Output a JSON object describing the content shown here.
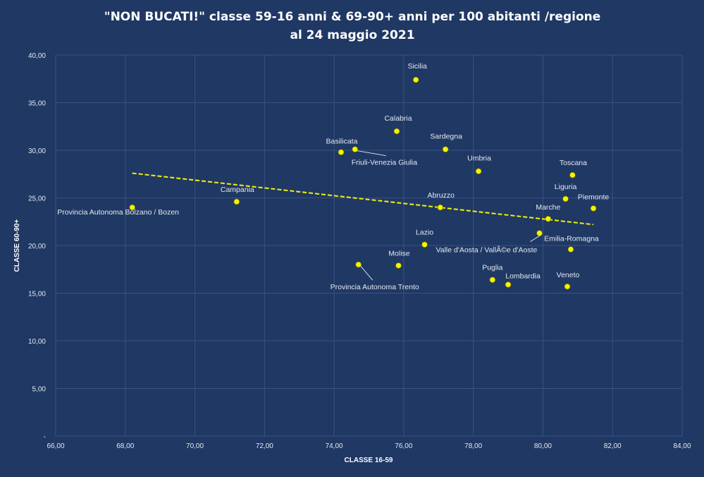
{
  "chart_data": {
    "type": "scatter",
    "title_line1": "\"NON BUCATI!\"  classe  59-16  anni  & 69-90+ anni  per  100 abitanti  /regione",
    "title_line2": "al  24  maggio  2021",
    "xlabel": "CLASSE 16-59",
    "ylabel": "CLASSE 60-90+",
    "xlim": [
      66,
      84
    ],
    "ylim": [
      0,
      40
    ],
    "x_ticks": [
      "66,00",
      "68,00",
      "70,00",
      "72,00",
      "74,00",
      "76,00",
      "78,00",
      "80,00",
      "82,00",
      "84,00"
    ],
    "y_ticks": [
      "-",
      "5,00",
      "10,00",
      "15,00",
      "20,00",
      "25,00",
      "30,00",
      "35,00",
      "40,00"
    ],
    "grid": true,
    "trendline": {
      "type": "linear",
      "x": [
        68.2,
        81.45
      ],
      "y": [
        27.6,
        22.2
      ]
    },
    "colors": {
      "background": "#1f3864",
      "point": "#f5f500",
      "trend": "#f5f500",
      "grid": "#3b5283"
    },
    "points": [
      {
        "label": "Sicilia",
        "x": 76.35,
        "y": 37.4
      },
      {
        "label": "Calabria",
        "x": 75.8,
        "y": 32.0
      },
      {
        "label": "Sardegna",
        "x": 77.2,
        "y": 30.1
      },
      {
        "label": "Basilicata",
        "x": 74.2,
        "y": 29.8
      },
      {
        "label": "Friuli-Venezia Giulia",
        "x": 74.6,
        "y": 30.1
      },
      {
        "label": "Umbria",
        "x": 78.15,
        "y": 27.8
      },
      {
        "label": "Toscana",
        "x": 80.85,
        "y": 27.4
      },
      {
        "label": "Campania",
        "x": 71.2,
        "y": 24.6
      },
      {
        "label": "Provincia Autonoma Bolzano / Bozen",
        "x": 68.2,
        "y": 24.0
      },
      {
        "label": "Abruzzo",
        "x": 77.05,
        "y": 24.0
      },
      {
        "label": "Liguria",
        "x": 80.65,
        "y": 24.9
      },
      {
        "label": "Piemonte",
        "x": 81.45,
        "y": 23.9
      },
      {
        "label": "Marche",
        "x": 80.15,
        "y": 22.8
      },
      {
        "label": "Valle d'Aosta / VallÃ©e d'Aoste",
        "x": 79.9,
        "y": 21.3
      },
      {
        "label": "Lazio",
        "x": 76.6,
        "y": 20.1
      },
      {
        "label": "Emilia-Romagna",
        "x": 80.8,
        "y": 19.6
      },
      {
        "label": "Provincia Autonoma Trento",
        "x": 74.7,
        "y": 18.0
      },
      {
        "label": "Molise",
        "x": 75.85,
        "y": 17.9
      },
      {
        "label": "Puglia",
        "x": 78.55,
        "y": 16.4
      },
      {
        "label": "Lombardia",
        "x": 79.0,
        "y": 15.9
      },
      {
        "label": "Veneto",
        "x": 80.7,
        "y": 15.7
      }
    ]
  }
}
